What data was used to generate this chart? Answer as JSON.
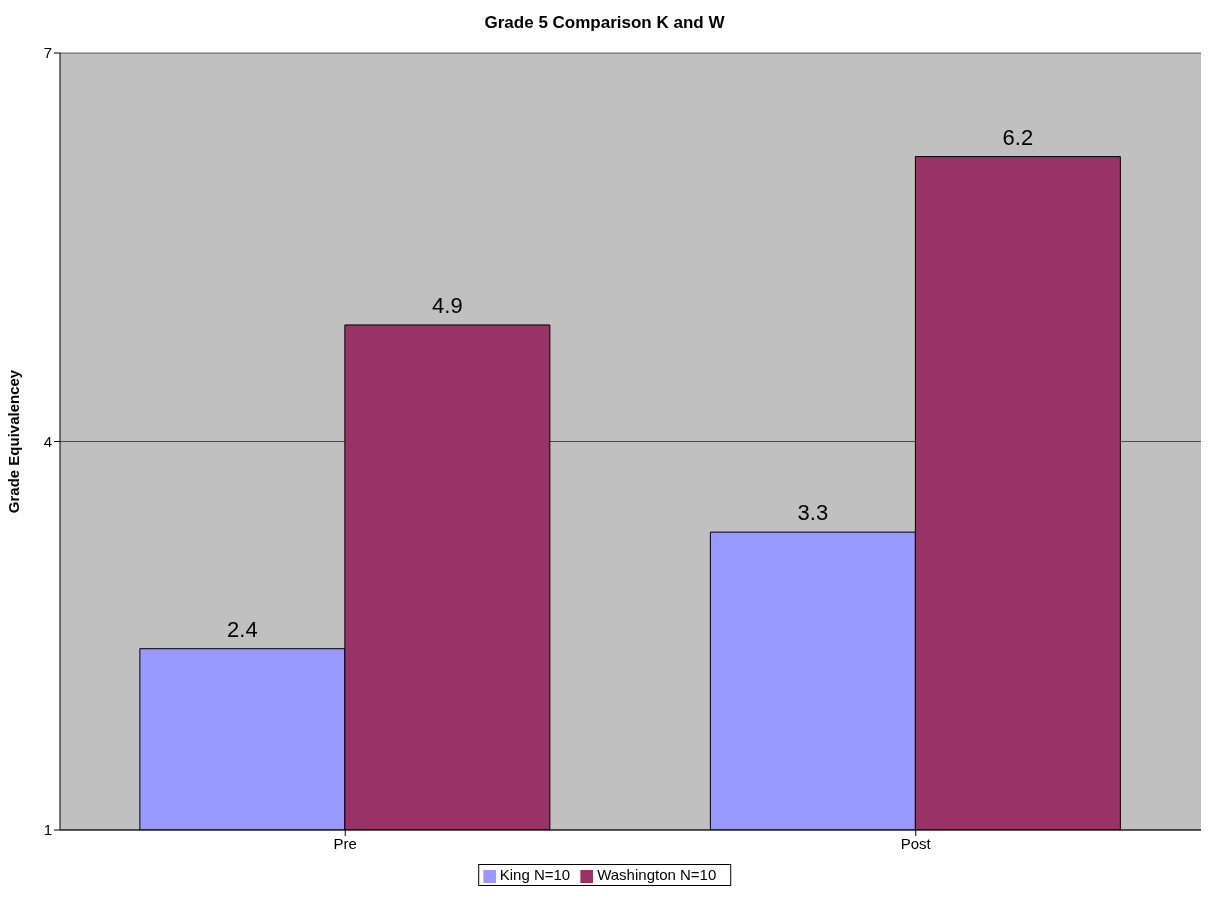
{
  "chart_data": {
    "type": "bar",
    "title": "Grade 5 Comparison K and W",
    "ylabel": "Grade Equivalencey",
    "categories": [
      "Pre",
      "Post"
    ],
    "series": [
      {
        "name": "King N=10",
        "color": "#9999ff",
        "values": [
          2.4,
          3.3
        ]
      },
      {
        "name": "Washington N=10",
        "color": "#993366",
        "values": [
          4.9,
          6.2
        ]
      }
    ],
    "ylim": [
      1,
      7
    ],
    "yticks": [
      1,
      4,
      7
    ],
    "grid": "y",
    "legend": "bottom",
    "data_labels": true
  }
}
